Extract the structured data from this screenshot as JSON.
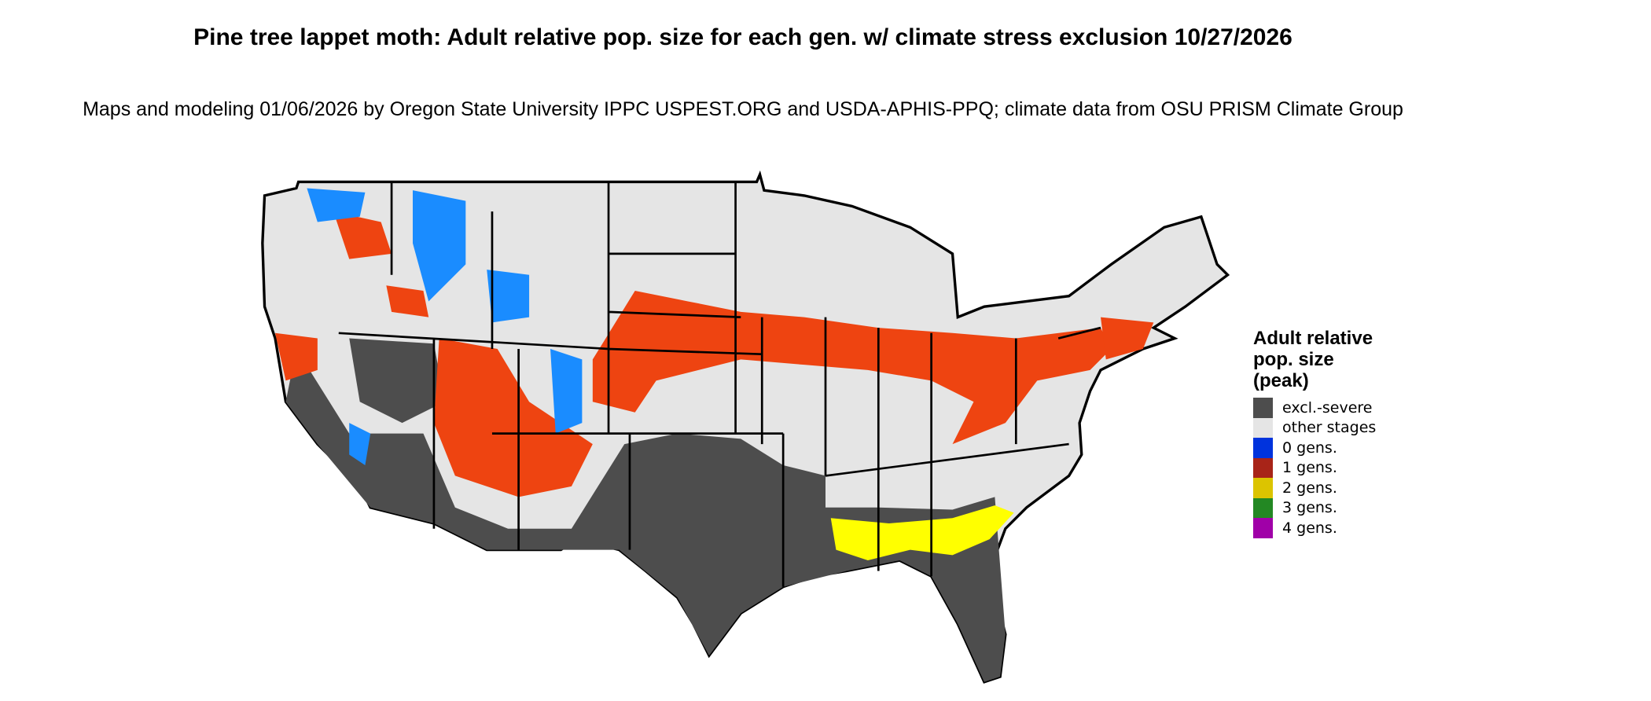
{
  "title": "Pine tree lappet moth: Adult relative pop. size for each gen. w/ climate stress exclusion 10/27/2026",
  "subtitle": "Maps and modeling 01/06/2026 by Oregon State University IPPC USPEST.ORG and USDA-APHIS-PPQ; climate data from OSU PRISM Climate Group",
  "legend": {
    "title": "Adult relative pop. size (peak)",
    "items": [
      {
        "label": "excl.-severe",
        "color": "#4d4d4d"
      },
      {
        "label": "other stages",
        "color": "#e5e5e5"
      },
      {
        "label": "0 gens.",
        "color": "#0033dd"
      },
      {
        "label": "1 gens.",
        "color": "#a82418"
      },
      {
        "label": "2 gens.",
        "color": "#dcc400"
      },
      {
        "label": "3 gens.",
        "color": "#238823"
      },
      {
        "label": "4 gens.",
        "color": "#a000a8"
      }
    ]
  },
  "map_colors": {
    "background_land": "#e5e5e5",
    "excluded": "#4d4d4d",
    "one_gen_bright": "#ee4411",
    "zero_gen_bright": "#1a8cff",
    "two_gen_bright": "#ffff00",
    "borders": "#000000"
  }
}
